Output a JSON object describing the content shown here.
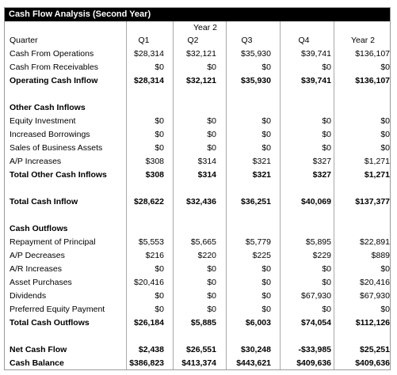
{
  "title": "Cash Flow Analysis (Second Year)",
  "group_header": "Year 2",
  "header_row": {
    "label": "Quarter",
    "cols": [
      "Q1",
      "Q2",
      "Q3",
      "Q4",
      "Year 2"
    ]
  },
  "rows": [
    {
      "label": "Cash From Operations",
      "vals": [
        "$28,314",
        "$32,121",
        "$35,930",
        "$39,741",
        "$136,107"
      ],
      "bold": false
    },
    {
      "label": "Cash From Receivables",
      "vals": [
        "$0",
        "$0",
        "$0",
        "$0",
        "$0"
      ],
      "bold": false
    },
    {
      "label": "Operating Cash Inflow",
      "vals": [
        "$28,314",
        "$32,121",
        "$35,930",
        "$39,741",
        "$136,107"
      ],
      "bold": true
    },
    {
      "label": "",
      "vals": [
        "",
        "",
        "",
        "",
        ""
      ],
      "bold": false
    },
    {
      "label": "Other Cash Inflows",
      "vals": [
        "",
        "",
        "",
        "",
        ""
      ],
      "bold": true
    },
    {
      "label": "Equity Investment",
      "vals": [
        "$0",
        "$0",
        "$0",
        "$0",
        "$0"
      ],
      "bold": false
    },
    {
      "label": "Increased Borrowings",
      "vals": [
        "$0",
        "$0",
        "$0",
        "$0",
        "$0"
      ],
      "bold": false
    },
    {
      "label": "Sales of Business Assets",
      "vals": [
        "$0",
        "$0",
        "$0",
        "$0",
        "$0"
      ],
      "bold": false
    },
    {
      "label": "A/P Increases",
      "vals": [
        "$308",
        "$314",
        "$321",
        "$327",
        "$1,271"
      ],
      "bold": false
    },
    {
      "label": "Total Other Cash Inflows",
      "vals": [
        "$308",
        "$314",
        "$321",
        "$327",
        "$1,271"
      ],
      "bold": true
    },
    {
      "label": "",
      "vals": [
        "",
        "",
        "",
        "",
        ""
      ],
      "bold": false
    },
    {
      "label": "Total Cash Inflow",
      "vals": [
        "$28,622",
        "$32,436",
        "$36,251",
        "$40,069",
        "$137,377"
      ],
      "bold": true
    },
    {
      "label": "",
      "vals": [
        "",
        "",
        "",
        "",
        ""
      ],
      "bold": false
    },
    {
      "label": "Cash Outflows",
      "vals": [
        "",
        "",
        "",
        "",
        ""
      ],
      "bold": true
    },
    {
      "label": "Repayment of Principal",
      "vals": [
        "$5,553",
        "$5,665",
        "$5,779",
        "$5,895",
        "$22,891"
      ],
      "bold": false
    },
    {
      "label": "A/P Decreases",
      "vals": [
        "$216",
        "$220",
        "$225",
        "$229",
        "$889"
      ],
      "bold": false
    },
    {
      "label": "A/R Increases",
      "vals": [
        "$0",
        "$0",
        "$0",
        "$0",
        "$0"
      ],
      "bold": false
    },
    {
      "label": "Asset Purchases",
      "vals": [
        "$20,416",
        "$0",
        "$0",
        "$0",
        "$20,416"
      ],
      "bold": false
    },
    {
      "label": "Dividends",
      "vals": [
        "$0",
        "$0",
        "$0",
        "$67,930",
        "$67,930"
      ],
      "bold": false
    },
    {
      "label": "Preferred Equity Payment",
      "vals": [
        "$0",
        "$0",
        "$0",
        "$0",
        "$0"
      ],
      "bold": false
    },
    {
      "label": "Total Cash Outflows",
      "vals": [
        "$26,184",
        "$5,885",
        "$6,003",
        "$74,054",
        "$112,126"
      ],
      "bold": true
    },
    {
      "label": "",
      "vals": [
        "",
        "",
        "",
        "",
        ""
      ],
      "bold": false
    },
    {
      "label": "Net Cash Flow",
      "vals": [
        "$2,438",
        "$26,551",
        "$30,248",
        "-$33,985",
        "$25,251"
      ],
      "bold": true
    },
    {
      "label": "Cash Balance",
      "vals": [
        "$386,823",
        "$413,374",
        "$443,621",
        "$409,636",
        "$409,636"
      ],
      "bold": true
    }
  ]
}
